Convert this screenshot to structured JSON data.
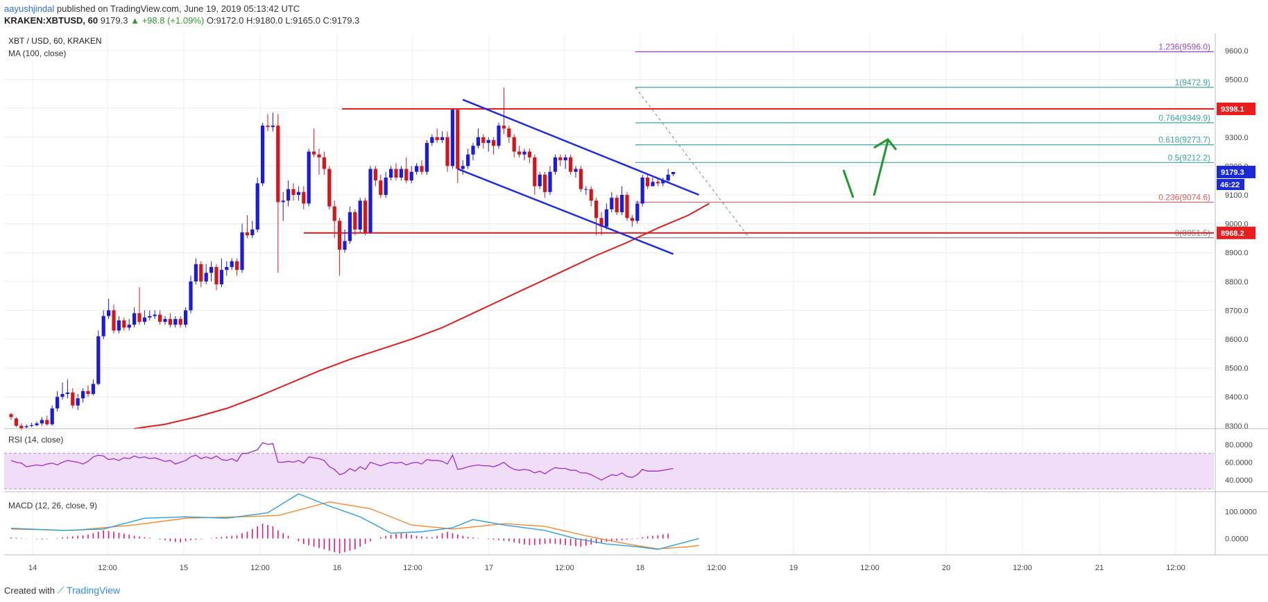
{
  "header": {
    "author": "aayushjindal",
    "published": "published on TradingView.com, June 19, 2019 05:13:42 UTC",
    "symbol": "KRAKEN:XBTUSD, 60",
    "last": "9179.3",
    "change": "+98.8 (+1.09%)",
    "ohlc": "O:9172.0 H:9180.0 L:9165.0 C:9179.3"
  },
  "legend": {
    "pair": "XBT / USD, 60, KRAKEN",
    "ma": "MA (100, close)",
    "rsi": "RSI (14, close)",
    "macd": "MACD (12, 26, close, 9)"
  },
  "footer": {
    "created": "Created with",
    "brand": "TradingView"
  },
  "colors": {
    "up": "#1a1ae0",
    "down": "#d8141b",
    "ma": "#e31b1b",
    "channel": "#1b2ae6",
    "arrow": "#1b9a2b",
    "macd_line": "#2aa0e0",
    "signal_line": "#f58a2c",
    "histogram": "#e8157a",
    "rsi_line": "#9b2bd1",
    "rsi_fill": "#f0def8",
    "fib_top": "#9b45cf",
    "fib_teal": "#3aa6a6",
    "fib_red": "#e55a5a"
  },
  "chart_data": {
    "type": "candlestick",
    "xlabels": [
      "14",
      "12:00",
      "15",
      "12:00",
      "16",
      "12:00",
      "17",
      "12:00",
      "18",
      "12:00",
      "19",
      "12:00",
      "20",
      "12:00",
      "21",
      "12:00"
    ],
    "price_axis": {
      "ticks": [
        "9600.0",
        "9500.0",
        "9400.0",
        "9300.0",
        "9200.0",
        "9100.0",
        "9000.0",
        "8900.0",
        "8800.0",
        "8700.0",
        "8600.0",
        "8500.0",
        "8400.0",
        "8300.0"
      ],
      "ylim": [
        8290,
        9660
      ],
      "last_price": "9179.3",
      "countdown": "46:22"
    },
    "candles": [
      [
        8340,
        8330,
        8345,
        8320
      ],
      [
        8325,
        8300,
        8330,
        8295
      ],
      [
        8300,
        8290,
        8308,
        8285
      ],
      [
        8295,
        8298,
        8305,
        8290
      ],
      [
        8300,
        8302,
        8310,
        8295
      ],
      [
        8302,
        8308,
        8315,
        8298
      ],
      [
        8308,
        8320,
        8330,
        8300
      ],
      [
        8320,
        8305,
        8335,
        8300
      ],
      [
        8305,
        8360,
        8370,
        8300
      ],
      [
        8360,
        8400,
        8420,
        8350
      ],
      [
        8400,
        8410,
        8450,
        8390
      ],
      [
        8410,
        8415,
        8460,
        8395
      ],
      [
        8415,
        8370,
        8430,
        8360
      ],
      [
        8370,
        8395,
        8410,
        8355
      ],
      [
        8395,
        8420,
        8430,
        8380
      ],
      [
        8420,
        8410,
        8440,
        8400
      ],
      [
        8410,
        8445,
        8460,
        8405
      ],
      [
        8445,
        8610,
        8630,
        8440
      ],
      [
        8610,
        8680,
        8700,
        8600
      ],
      [
        8680,
        8700,
        8740,
        8670
      ],
      [
        8700,
        8630,
        8720,
        8620
      ],
      [
        8630,
        8665,
        8680,
        8620
      ],
      [
        8665,
        8640,
        8675,
        8630
      ],
      [
        8640,
        8650,
        8670,
        8630
      ],
      [
        8650,
        8690,
        8710,
        8640
      ],
      [
        8690,
        8660,
        8780,
        8650
      ],
      [
        8660,
        8675,
        8700,
        8650
      ],
      [
        8675,
        8680,
        8700,
        8665
      ],
      [
        8680,
        8685,
        8700,
        8670
      ],
      [
        8685,
        8660,
        8700,
        8650
      ],
      [
        8660,
        8670,
        8680,
        8650
      ],
      [
        8670,
        8650,
        8690,
        8640
      ],
      [
        8650,
        8670,
        8680,
        8640
      ],
      [
        8670,
        8650,
        8680,
        8640
      ],
      [
        8650,
        8700,
        8710,
        8640
      ],
      [
        8700,
        8800,
        8820,
        8690
      ],
      [
        8800,
        8860,
        8880,
        8790
      ],
      [
        8860,
        8800,
        8870,
        8780
      ],
      [
        8800,
        8830,
        8860,
        8790
      ],
      [
        8830,
        8850,
        8870,
        8800
      ],
      [
        8850,
        8790,
        8860,
        8770
      ],
      [
        8790,
        8840,
        8880,
        8780
      ],
      [
        8840,
        8850,
        8870,
        8820
      ],
      [
        8850,
        8870,
        8880,
        8840
      ],
      [
        8870,
        8840,
        8880,
        8820
      ],
      [
        8840,
        8970,
        9000,
        8830
      ],
      [
        8970,
        8960,
        9030,
        8950
      ],
      [
        8960,
        8980,
        9010,
        8950
      ],
      [
        8980,
        9140,
        9160,
        8970
      ],
      [
        9140,
        9340,
        9350,
        9130
      ],
      [
        9340,
        9335,
        9380,
        9320
      ],
      [
        9335,
        9340,
        9385,
        9320
      ],
      [
        9340,
        9075,
        9380,
        8830
      ],
      [
        9075,
        9080,
        9110,
        9010
      ],
      [
        9080,
        9120,
        9150,
        9060
      ],
      [
        9120,
        9100,
        9140,
        9080
      ],
      [
        9100,
        9110,
        9130,
        9080
      ],
      [
        9110,
        9070,
        9130,
        9050
      ],
      [
        9070,
        9250,
        9260,
        9060
      ],
      [
        9250,
        9240,
        9330,
        9230
      ],
      [
        9240,
        9230,
        9260,
        9170
      ],
      [
        9230,
        9190,
        9250,
        9170
      ],
      [
        9190,
        9060,
        9200,
        9050
      ],
      [
        9060,
        9010,
        9080,
        8950
      ],
      [
        9010,
        8910,
        9020,
        8820
      ],
      [
        8910,
        8940,
        8980,
        8900
      ],
      [
        8940,
        9040,
        9060,
        8930
      ],
      [
        9040,
        8980,
        9050,
        8960
      ],
      [
        8980,
        9080,
        9090,
        8970
      ],
      [
        9080,
        8970,
        9090,
        8960
      ],
      [
        8970,
        9190,
        9200,
        8965
      ],
      [
        9190,
        9150,
        9200,
        9130
      ],
      [
        9150,
        9100,
        9170,
        9090
      ],
      [
        9100,
        9160,
        9180,
        9090
      ],
      [
        9160,
        9190,
        9200,
        9150
      ],
      [
        9190,
        9160,
        9210,
        9150
      ],
      [
        9160,
        9190,
        9200,
        9150
      ],
      [
        9190,
        9150,
        9230,
        9140
      ],
      [
        9150,
        9180,
        9200,
        9140
      ],
      [
        9180,
        9200,
        9210,
        9170
      ],
      [
        9200,
        9180,
        9220,
        9170
      ],
      [
        9180,
        9280,
        9290,
        9170
      ],
      [
        9280,
        9300,
        9310,
        9270
      ],
      [
        9300,
        9290,
        9330,
        9280
      ],
      [
        9290,
        9300,
        9320,
        9280
      ],
      [
        9300,
        9200,
        9320,
        9180
      ],
      [
        9200,
        9395,
        9400,
        9190
      ],
      [
        9395,
        9190,
        9400,
        9140
      ],
      [
        9190,
        9200,
        9220,
        9170
      ],
      [
        9200,
        9240,
        9260,
        9190
      ],
      [
        9240,
        9270,
        9280,
        9220
      ],
      [
        9270,
        9300,
        9330,
        9260
      ],
      [
        9300,
        9280,
        9310,
        9260
      ],
      [
        9280,
        9290,
        9300,
        9250
      ],
      [
        9290,
        9270,
        9300,
        9240
      ],
      [
        9270,
        9340,
        9350,
        9260
      ],
      [
        9340,
        9330,
        9472,
        9310
      ],
      [
        9330,
        9300,
        9340,
        9280
      ],
      [
        9300,
        9250,
        9310,
        9230
      ],
      [
        9250,
        9240,
        9270,
        9230
      ],
      [
        9240,
        9250,
        9260,
        9220
      ],
      [
        9250,
        9230,
        9260,
        9210
      ],
      [
        9230,
        9130,
        9240,
        9100
      ],
      [
        9130,
        9170,
        9180,
        9120
      ],
      [
        9170,
        9110,
        9180,
        9090
      ],
      [
        9110,
        9180,
        9200,
        9100
      ],
      [
        9180,
        9230,
        9240,
        9170
      ],
      [
        9230,
        9220,
        9240,
        9200
      ],
      [
        9220,
        9230,
        9240,
        9190
      ],
      [
        9230,
        9180,
        9240,
        9170
      ],
      [
        9180,
        9190,
        9200,
        9160
      ],
      [
        9190,
        9120,
        9200,
        9110
      ],
      [
        9120,
        9120,
        9130,
        9100
      ],
      [
        9120,
        9080,
        9130,
        9060
      ],
      [
        9080,
        9020,
        9090,
        8960
      ],
      [
        9020,
        8990,
        9040,
        8960
      ],
      [
        8990,
        9050,
        9070,
        8980
      ],
      [
        9050,
        9090,
        9110,
        9040
      ],
      [
        9090,
        9040,
        9100,
        9030
      ],
      [
        9040,
        9100,
        9130,
        9030
      ],
      [
        9100,
        9020,
        9110,
        9010
      ],
      [
        9020,
        9010,
        9030,
        8990
      ],
      [
        9010,
        9070,
        9080,
        9000
      ],
      [
        9070,
        9160,
        9170,
        9060
      ],
      [
        9160,
        9130,
        9170,
        9120
      ],
      [
        9130,
        9145,
        9160,
        9130
      ],
      [
        9145,
        9140,
        9160,
        9130
      ],
      [
        9140,
        9150,
        9160,
        9130
      ],
      [
        9150,
        9170,
        9190,
        9140
      ],
      [
        9172,
        9179.3,
        9180,
        9165
      ]
    ],
    "ma100": [
      [
        24,
        8290
      ],
      [
        30,
        8305
      ],
      [
        36,
        8330
      ],
      [
        42,
        8360
      ],
      [
        48,
        8400
      ],
      [
        54,
        8445
      ],
      [
        60,
        8490
      ],
      [
        66,
        8530
      ],
      [
        72,
        8565
      ],
      [
        78,
        8600
      ],
      [
        84,
        8640
      ],
      [
        90,
        8690
      ],
      [
        96,
        8740
      ],
      [
        102,
        8790
      ],
      [
        108,
        8840
      ],
      [
        114,
        8890
      ],
      [
        120,
        8935
      ],
      [
        126,
        8985
      ],
      [
        132,
        9030
      ],
      [
        136,
        9070
      ]
    ],
    "fib": [
      {
        "label": "1.236(9596.0)",
        "price": 9596.0
      },
      {
        "label": "1(9472.9)",
        "price": 9472.9
      },
      {
        "label": "0.764(9349.9)",
        "price": 9349.9
      },
      {
        "label": "0.618(9273.7)",
        "price": 9273.7
      },
      {
        "label": "0.5(9212.2)",
        "price": 9212.2
      },
      {
        "label": "0.236(9074.6)",
        "price": 9074.6
      },
      {
        "label": "0(8951.5)",
        "price": 8951.5
      }
    ],
    "resistance": {
      "price": 9398.1,
      "label": "9398.1"
    },
    "support": {
      "price": 8968.2,
      "label": "8968.2"
    },
    "channel": {
      "upper": [
        [
          88,
          9430
        ],
        [
          134,
          9100
        ]
      ],
      "lower": [
        [
          87,
          9190
        ],
        [
          129,
          8895
        ]
      ]
    },
    "rsi": {
      "ticks": [
        "80.0000",
        "60.0000",
        "40.0000"
      ],
      "ylim": [
        30,
        90
      ],
      "values": [
        62,
        60,
        59,
        55,
        56,
        57,
        56,
        58,
        59,
        57,
        60,
        62,
        61,
        60,
        58,
        61,
        66,
        68,
        67,
        63,
        64,
        62,
        65,
        64,
        67,
        65,
        66,
        64,
        65,
        63,
        61,
        62,
        58,
        60,
        62,
        66,
        68,
        64,
        66,
        64,
        67,
        63,
        62,
        64,
        61,
        70,
        70,
        72,
        74,
        82,
        80,
        81,
        60,
        60,
        61,
        60,
        62,
        59,
        66,
        65,
        64,
        62,
        55,
        52,
        46,
        48,
        53,
        50,
        55,
        52,
        60,
        58,
        56,
        58,
        60,
        59,
        60,
        57,
        59,
        60,
        58,
        63,
        62,
        62,
        61,
        58,
        68,
        52,
        53,
        55,
        56,
        57,
        56,
        56,
        55,
        57,
        60,
        55,
        52,
        51,
        52,
        51,
        48,
        50,
        47,
        51,
        54,
        53,
        53,
        51,
        51,
        48,
        48,
        46,
        43,
        40,
        43,
        46,
        45,
        48,
        44,
        43,
        46,
        52,
        50,
        50,
        50,
        51,
        52,
        53
      ],
      "upper_band": 70,
      "lower_band": 30
    },
    "macd": {
      "ticks": [
        "100.0000",
        "0.0000"
      ],
      "ylim": [
        -60,
        165
      ],
      "macd_line": [
        [
          0,
          38
        ],
        [
          10,
          30
        ],
        [
          18,
          35
        ],
        [
          26,
          75
        ],
        [
          34,
          80
        ],
        [
          42,
          75
        ],
        [
          50,
          95
        ],
        [
          56,
          165
        ],
        [
          62,
          120
        ],
        [
          68,
          80
        ],
        [
          74,
          20
        ],
        [
          80,
          25
        ],
        [
          86,
          40
        ],
        [
          90,
          70
        ],
        [
          96,
          50
        ],
        [
          104,
          30
        ],
        [
          110,
          0
        ],
        [
          116,
          -20
        ],
        [
          122,
          -30
        ],
        [
          126,
          -40
        ],
        [
          130,
          -20
        ],
        [
          134,
          0
        ]
      ],
      "signal_line": [
        [
          0,
          35
        ],
        [
          12,
          30
        ],
        [
          24,
          50
        ],
        [
          34,
          75
        ],
        [
          44,
          80
        ],
        [
          52,
          85
        ],
        [
          62,
          135
        ],
        [
          70,
          110
        ],
        [
          78,
          50
        ],
        [
          86,
          35
        ],
        [
          96,
          55
        ],
        [
          104,
          45
        ],
        [
          112,
          10
        ],
        [
          120,
          -20
        ],
        [
          126,
          -38
        ],
        [
          132,
          -30
        ],
        [
          134,
          -25
        ]
      ],
      "histogram": [
        4,
        3,
        2,
        1,
        0,
        -2,
        -3,
        -2,
        0,
        2,
        4,
        6,
        8,
        10,
        12,
        15,
        20,
        25,
        30,
        28,
        25,
        22,
        18,
        14,
        10,
        8,
        5,
        3,
        0,
        -3,
        -6,
        -10,
        -12,
        -14,
        -10,
        -6,
        -4,
        -2,
        0,
        2,
        4,
        6,
        8,
        10,
        12,
        20,
        25,
        35,
        45,
        55,
        50,
        45,
        30,
        20,
        10,
        0,
        -10,
        -20,
        -25,
        -30,
        -35,
        -40,
        -45,
        -50,
        -55,
        -50,
        -45,
        -40,
        -30,
        -20,
        -10,
        0,
        5,
        10,
        14,
        18,
        20,
        18,
        14,
        10,
        8,
        6,
        5,
        10,
        20,
        25,
        20,
        15,
        10,
        6,
        4,
        2,
        0,
        -2,
        -4,
        -6,
        -8,
        -10,
        -14,
        -18,
        -22,
        -25,
        -24,
        -22,
        -20,
        -18,
        -20,
        -22,
        -24,
        -26,
        -28,
        -30,
        -26,
        -22,
        -18,
        -15,
        -12,
        -10,
        -8,
        -6,
        -4,
        -2,
        2,
        5,
        8,
        10,
        12,
        15,
        18
      ]
    }
  }
}
